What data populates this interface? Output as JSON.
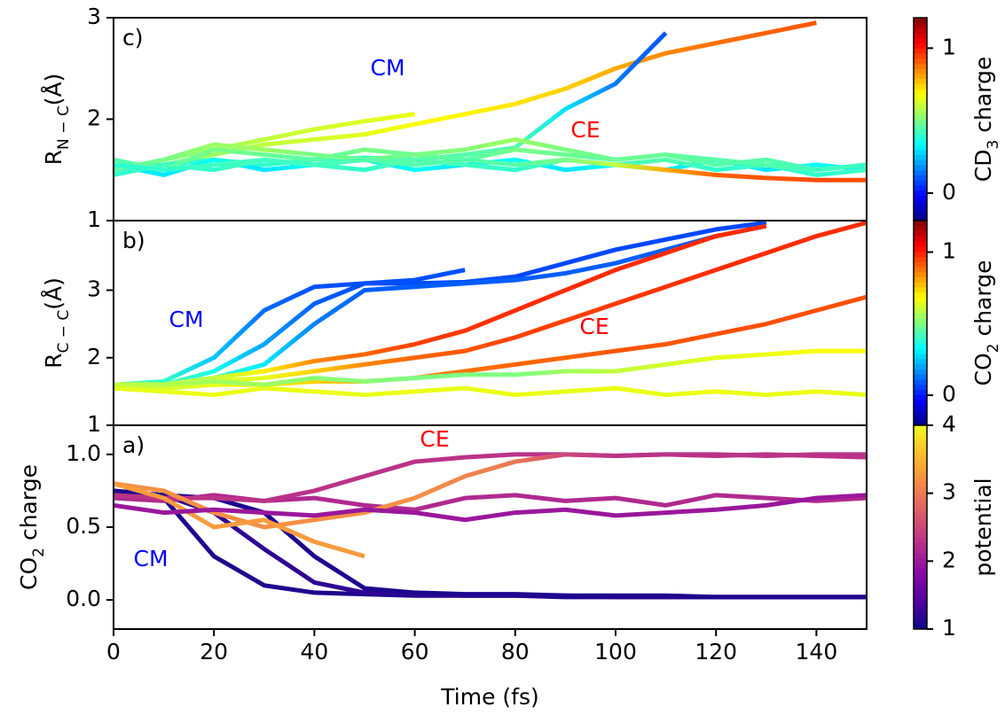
{
  "chart_data": [
    {
      "type": "line",
      "label": "c)",
      "ylabel": [
        {
          "text": "R"
        },
        {
          "text": "N − C",
          "sub": true
        },
        {
          "text": "(Å)"
        }
      ],
      "ylim": [
        1,
        3
      ],
      "yticks": [
        1,
        2,
        3
      ],
      "xlim": [
        0,
        150
      ],
      "x": [
        0,
        10,
        20,
        30,
        40,
        50,
        60,
        70,
        80,
        90,
        100,
        110,
        120,
        130,
        140,
        150
      ],
      "annotations": [
        {
          "text": "CM",
          "color": "#0000ff"
        },
        {
          "text": "CE",
          "color": "#ff0000"
        }
      ],
      "colorbar": {
        "label": [
          {
            "text": "CD"
          },
          {
            "text": "3",
            "sub": true
          },
          {
            "text": " charge"
          }
        ],
        "lim": [
          -0.19,
          1.21
        ],
        "ticks": [
          0,
          1
        ],
        "colormap": "jet"
      },
      "series": [
        {
          "values": [
            1.5,
            1.55,
            1.65,
            1.75,
            1.8,
            1.85,
            1.95,
            2.05,
            2.15,
            2.3,
            2.5,
            2.65,
            2.75,
            2.85,
            2.95,
            null
          ],
          "color_values": [
            0.45,
            0.5,
            0.55,
            0.6,
            0.62,
            0.65,
            0.68,
            0.7,
            0.72,
            0.75,
            0.8,
            0.85,
            0.88,
            0.9,
            0.92,
            null
          ]
        },
        {
          "values": [
            1.5,
            1.55,
            1.6,
            1.55,
            1.6,
            1.62,
            1.6,
            1.65,
            1.72,
            2.1,
            2.35,
            2.85,
            null,
            null,
            null,
            null
          ],
          "color_values": [
            0.4,
            0.4,
            0.4,
            0.4,
            0.42,
            0.42,
            0.45,
            0.45,
            0.45,
            0.3,
            0.15,
            0.1,
            null,
            null,
            null,
            null
          ]
        },
        {
          "values": [
            1.5,
            1.6,
            1.7,
            1.8,
            1.9,
            1.98,
            2.05,
            null,
            null,
            null,
            null,
            null,
            null,
            null,
            null,
            null
          ],
          "color_values": [
            0.45,
            0.5,
            0.55,
            0.6,
            0.62,
            0.64,
            0.66,
            null,
            null,
            null,
            null,
            null,
            null,
            null,
            null,
            null
          ]
        },
        {
          "values": [
            1.55,
            1.45,
            1.6,
            1.5,
            1.55,
            1.6,
            1.5,
            1.55,
            1.6,
            1.5,
            1.55,
            1.5,
            1.6,
            1.5,
            1.55,
            1.5
          ],
          "color_values": [
            0.35,
            0.3,
            0.35,
            0.3,
            0.35,
            0.3,
            0.35,
            0.3,
            0.35,
            0.3,
            0.35,
            0.3,
            0.35,
            0.3,
            0.35,
            0.3
          ]
        },
        {
          "values": [
            1.45,
            1.55,
            1.5,
            1.6,
            1.55,
            1.5,
            1.6,
            1.55,
            1.5,
            1.6,
            1.55,
            1.6,
            1.5,
            1.55,
            1.45,
            1.5
          ],
          "color_values": [
            0.4,
            0.42,
            0.4,
            0.45,
            0.42,
            0.4,
            0.45,
            0.42,
            0.4,
            0.45,
            0.42,
            0.45,
            0.4,
            0.42,
            0.4,
            0.42
          ]
        },
        {
          "values": [
            1.6,
            1.5,
            1.7,
            1.65,
            1.6,
            1.7,
            1.65,
            1.6,
            1.7,
            1.65,
            1.6,
            1.65,
            1.55,
            1.6,
            1.5,
            1.55
          ],
          "color_values": [
            0.45,
            0.45,
            0.5,
            0.48,
            0.45,
            0.5,
            0.48,
            0.45,
            0.5,
            0.48,
            0.45,
            0.48,
            0.45,
            0.45,
            0.42,
            0.42
          ]
        },
        {
          "values": [
            1.5,
            1.6,
            1.75,
            1.7,
            1.65,
            1.6,
            1.65,
            1.7,
            1.8,
            1.7,
            1.6,
            1.65,
            1.6,
            1.55,
            1.5,
            1.55
          ],
          "color_values": [
            0.45,
            0.5,
            0.55,
            0.55,
            0.5,
            0.48,
            0.5,
            0.52,
            0.55,
            0.5,
            0.48,
            0.48,
            0.45,
            0.45,
            0.42,
            0.42
          ]
        },
        {
          "values": [
            1.55,
            1.5,
            1.55,
            1.6,
            1.55,
            1.6,
            1.55,
            1.6,
            1.55,
            1.6,
            1.55,
            1.5,
            1.45,
            1.42,
            1.4,
            1.4
          ],
          "color_values": [
            0.4,
            0.4,
            0.42,
            0.42,
            0.42,
            0.45,
            0.45,
            0.45,
            0.45,
            0.5,
            0.6,
            0.8,
            0.9,
            0.92,
            0.93,
            0.93
          ]
        }
      ]
    },
    {
      "type": "line",
      "label": "b)",
      "ylabel": [
        {
          "text": "R"
        },
        {
          "text": "C − C",
          "sub": true
        },
        {
          "text": "(Å)"
        }
      ],
      "ylim": [
        1,
        4.03
      ],
      "yticks": [
        1,
        2,
        3
      ],
      "xlim": [
        0,
        150
      ],
      "x": [
        0,
        10,
        20,
        30,
        40,
        50,
        60,
        70,
        80,
        90,
        100,
        110,
        120,
        130,
        140,
        150
      ],
      "annotations": [
        {
          "text": "CM",
          "color": "#0000ff"
        },
        {
          "text": "CE",
          "color": "#ff0000"
        }
      ],
      "colorbar": {
        "label": [
          {
            "text": "CO"
          },
          {
            "text": "2",
            "sub": true
          },
          {
            "text": " charge"
          }
        ],
        "lim": [
          -0.21,
          1.22
        ],
        "ticks": [
          0,
          1
        ],
        "colormap": "jet"
      },
      "series": [
        {
          "values": [
            1.6,
            1.65,
            2.0,
            2.7,
            3.05,
            3.1,
            3.1,
            3.12,
            3.2,
            3.4,
            3.6,
            3.75,
            3.9,
            4.0,
            null,
            null
          ],
          "color_values": [
            0.45,
            0.4,
            0.25,
            0.12,
            0.08,
            0.08,
            0.08,
            0.08,
            0.07,
            0.07,
            0.07,
            0.07,
            0.07,
            0.07,
            null,
            null
          ]
        },
        {
          "values": [
            1.6,
            1.6,
            1.8,
            2.2,
            2.8,
            3.1,
            3.15,
            3.3,
            null,
            null,
            null,
            null,
            null,
            null,
            null,
            null
          ],
          "color_values": [
            0.45,
            0.45,
            0.35,
            0.2,
            0.1,
            0.08,
            0.08,
            0.08,
            null,
            null,
            null,
            null,
            null,
            null,
            null,
            null
          ]
        },
        {
          "values": [
            1.6,
            1.6,
            1.7,
            1.9,
            2.5,
            3.0,
            3.05,
            3.1,
            3.15,
            3.25,
            3.4,
            3.6,
            3.8,
            3.95,
            null,
            null
          ],
          "color_values": [
            0.45,
            0.45,
            0.4,
            0.3,
            0.15,
            0.1,
            0.1,
            0.1,
            0.1,
            0.1,
            0.1,
            0.1,
            0.1,
            0.1,
            null,
            null
          ]
        },
        {
          "values": [
            1.6,
            1.6,
            1.7,
            1.8,
            1.95,
            2.05,
            2.2,
            2.4,
            2.7,
            3.0,
            3.3,
            3.55,
            3.8,
            3.95,
            null,
            null
          ],
          "color_values": [
            0.6,
            0.6,
            0.6,
            0.7,
            0.85,
            0.9,
            0.95,
            0.97,
            0.98,
            0.98,
            0.98,
            0.98,
            0.98,
            0.98,
            null,
            null
          ]
        },
        {
          "values": [
            1.6,
            1.6,
            1.65,
            1.7,
            1.8,
            1.9,
            2.0,
            2.1,
            2.3,
            2.55,
            2.8,
            3.05,
            3.3,
            3.55,
            3.8,
            4.0
          ],
          "color_values": [
            0.6,
            0.6,
            0.62,
            0.65,
            0.75,
            0.85,
            0.9,
            0.92,
            0.95,
            0.95,
            0.96,
            0.97,
            0.98,
            0.98,
            0.98,
            0.98
          ]
        },
        {
          "values": [
            1.6,
            1.55,
            1.6,
            1.6,
            1.65,
            1.65,
            1.7,
            1.8,
            1.9,
            2.0,
            2.1,
            2.2,
            2.35,
            2.5,
            2.7,
            2.9
          ],
          "color_values": [
            0.6,
            0.62,
            0.65,
            0.7,
            0.75,
            0.8,
            0.85,
            0.88,
            0.9,
            0.9,
            0.92,
            0.92,
            0.93,
            0.93,
            0.93,
            0.93
          ]
        },
        {
          "values": [
            1.55,
            1.5,
            1.45,
            1.55,
            1.5,
            1.45,
            1.5,
            1.55,
            1.45,
            1.5,
            1.55,
            1.45,
            1.5,
            1.45,
            1.5,
            1.45
          ],
          "color_values": [
            0.65,
            0.65,
            0.66,
            0.65,
            0.66,
            0.65,
            0.66,
            0.65,
            0.66,
            0.65,
            0.66,
            0.65,
            0.66,
            0.65,
            0.66,
            0.65
          ]
        },
        {
          "values": [
            1.6,
            1.6,
            1.65,
            1.6,
            1.7,
            1.65,
            1.7,
            1.75,
            1.75,
            1.8,
            1.8,
            1.9,
            2.0,
            2.05,
            2.1,
            2.1
          ],
          "color_values": [
            0.6,
            0.58,
            0.55,
            0.55,
            0.52,
            0.52,
            0.5,
            0.5,
            0.5,
            0.55,
            0.6,
            0.62,
            0.65,
            0.66,
            0.68,
            0.68
          ]
        }
      ]
    },
    {
      "type": "line",
      "label": "a)",
      "ylabel": [
        {
          "text": "CO"
        },
        {
          "text": "2",
          "sub": true
        },
        {
          "text": " charge"
        }
      ],
      "xlabel": "Time (fs)",
      "ylim": [
        -0.2,
        1.2
      ],
      "yticks": [
        {
          "value": 0,
          "label": "0.0"
        },
        {
          "value": 0.5,
          "label": "0.5"
        },
        {
          "value": 1,
          "label": "1.0"
        }
      ],
      "xlim": [
        0,
        150
      ],
      "xticks": [
        0,
        20,
        40,
        60,
        80,
        100,
        120,
        140
      ],
      "x": [
        0,
        10,
        20,
        30,
        40,
        50,
        60,
        70,
        80,
        90,
        100,
        110,
        120,
        130,
        140,
        150
      ],
      "annotations": [
        {
          "text": "CE",
          "color": "#ff0000"
        },
        {
          "text": "CM",
          "color": "#0000ff"
        }
      ],
      "colorbar": {
        "label": [
          {
            "text": "potential"
          }
        ],
        "lim": [
          1,
          4
        ],
        "ticks": [
          1,
          2,
          3,
          4
        ],
        "colormap": "plasma"
      },
      "series": [
        {
          "values": [
            0.75,
            0.7,
            0.3,
            0.1,
            0.05,
            0.04,
            0.03,
            0.03,
            0.03,
            0.02,
            0.02,
            0.02,
            0.02,
            0.02,
            0.02,
            0.02
          ],
          "color_values": [
            1.1,
            1.1,
            1.1,
            1.1,
            1.1,
            1.1,
            1.1,
            1.1,
            1.1,
            1.1,
            1.1,
            1.1,
            1.1,
            1.1,
            1.1,
            1.1
          ]
        },
        {
          "values": [
            0.75,
            0.72,
            0.6,
            0.35,
            0.12,
            0.05,
            0.04,
            0.03,
            0.03,
            0.03,
            0.02,
            0.02,
            0.02,
            0.02,
            0.02,
            0.02
          ],
          "color_values": [
            1.2,
            1.2,
            1.2,
            1.2,
            1.2,
            1.2,
            1.2,
            1.2,
            1.2,
            1.2,
            1.2,
            1.2,
            1.2,
            1.2,
            1.2,
            1.2
          ]
        },
        {
          "values": [
            0.75,
            0.72,
            0.7,
            0.6,
            0.3,
            0.08,
            0.05,
            0.04,
            0.04,
            0.03,
            0.03,
            0.03,
            0.02,
            0.02,
            0.02,
            0.02
          ],
          "color_values": [
            1.1,
            1.1,
            1.1,
            1.1,
            1.1,
            1.1,
            1.1,
            1.1,
            1.1,
            1.1,
            1.1,
            1.1,
            1.1,
            1.1,
            1.1,
            1.1
          ]
        },
        {
          "values": [
            0.7,
            0.68,
            0.72,
            0.68,
            0.7,
            0.65,
            0.62,
            0.7,
            0.72,
            0.68,
            0.7,
            0.65,
            0.72,
            0.7,
            0.68,
            0.7
          ],
          "color_values": [
            2.2,
            2.2,
            2.2,
            2.2,
            2.2,
            2.2,
            2.2,
            2.2,
            2.2,
            2.2,
            2.2,
            2.2,
            2.2,
            2.2,
            2.2,
            2.2
          ]
        },
        {
          "values": [
            0.72,
            0.7,
            0.7,
            0.68,
            0.75,
            0.85,
            0.95,
            0.98,
            1.0,
            1.0,
            0.99,
            1.0,
            1.0,
            0.99,
            1.0,
            1.0
          ],
          "color_values": [
            2.3,
            2.3,
            2.3,
            2.3,
            2.3,
            2.3,
            2.3,
            2.3,
            2.3,
            2.3,
            2.3,
            2.3,
            2.3,
            2.3,
            2.3,
            2.3
          ]
        },
        {
          "values": [
            0.8,
            0.75,
            0.6,
            0.5,
            0.55,
            0.6,
            0.7,
            0.85,
            0.95,
            1.0,
            0.99,
            1.0,
            0.99,
            1.0,
            0.99,
            0.98
          ],
          "color_values": [
            3.2,
            3.2,
            3.2,
            3.2,
            3.2,
            3.2,
            3.2,
            3.1,
            3.0,
            2.5,
            2.3,
            2.3,
            2.3,
            2.3,
            2.3,
            2.3
          ]
        },
        {
          "values": [
            0.8,
            0.7,
            0.5,
            0.55,
            0.4,
            0.3,
            null,
            null,
            null,
            null,
            null,
            null,
            null,
            null,
            null,
            null
          ],
          "color_values": [
            3.3,
            3.3,
            3.3,
            3.3,
            3.3,
            3.3,
            null,
            null,
            null,
            null,
            null,
            null,
            null,
            null,
            null,
            null
          ]
        },
        {
          "values": [
            0.65,
            0.6,
            0.62,
            0.6,
            0.58,
            0.62,
            0.6,
            0.55,
            0.6,
            0.62,
            0.58,
            0.6,
            0.62,
            0.65,
            0.7,
            0.72
          ],
          "color_values": [
            2.0,
            2.0,
            2.0,
            2.0,
            2.0,
            2.0,
            2.0,
            2.0,
            2.0,
            2.0,
            2.0,
            2.0,
            2.0,
            2.0,
            2.0,
            2.0
          ]
        }
      ]
    }
  ]
}
